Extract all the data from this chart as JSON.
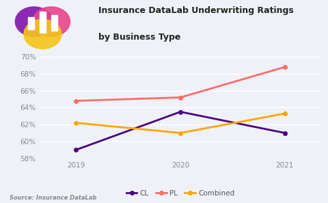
{
  "title_line1": "Insurance DataLab Underwriting Ratings",
  "title_line2": "by Business Type",
  "source": "Source: Insurance DataLab",
  "years": [
    2019,
    2020,
    2021
  ],
  "CL": [
    59.0,
    63.5,
    61.0
  ],
  "PL": [
    64.8,
    65.2,
    68.8
  ],
  "Combined": [
    62.2,
    61.0,
    63.3
  ],
  "CL_color": "#4B0082",
  "PL_color": "#FF6B6B",
  "Combined_color": "#FFA500",
  "bg_color": "#EEF2F8",
  "ylim_min": 58,
  "ylim_max": 70,
  "yticks": [
    58,
    60,
    62,
    64,
    66,
    68,
    70
  ],
  "grid_color": "#FFFFFF",
  "axis_label_color": "#888888",
  "marker": "o",
  "linewidth": 2.0,
  "markersize": 4
}
